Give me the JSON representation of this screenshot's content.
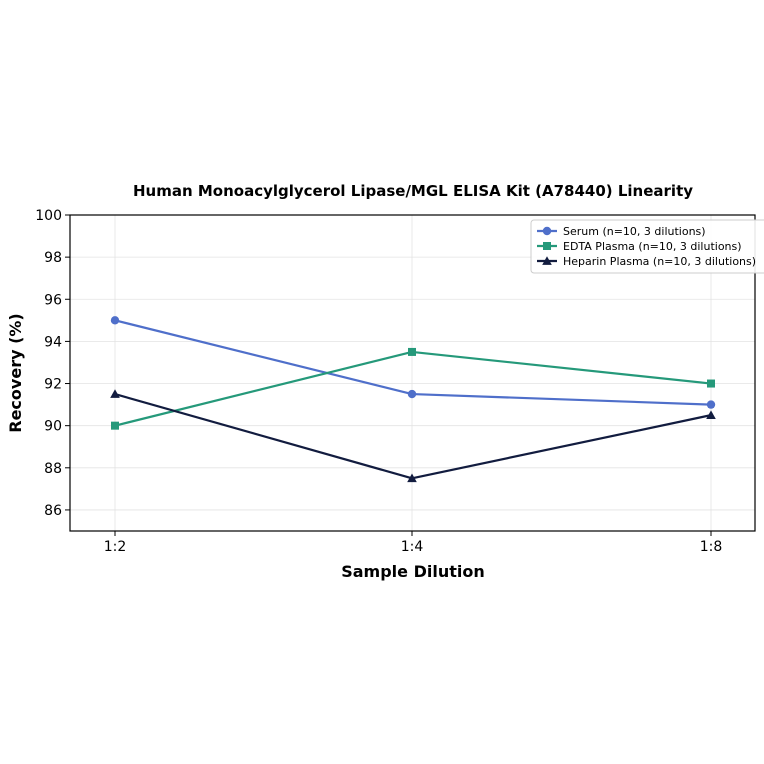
{
  "chart_data": {
    "type": "line",
    "title": "Human Monoacylglycerol Lipase/MGL ELISA Kit (A78440) Linearity",
    "xlabel": "Sample Dilution",
    "ylabel": "Recovery (%)",
    "categories": [
      "1:2",
      "1:4",
      "1:8"
    ],
    "ylim": [
      85,
      100
    ],
    "yticks": [
      86,
      88,
      90,
      92,
      94,
      96,
      98,
      100
    ],
    "grid": true,
    "legend_position": "top-right",
    "series": [
      {
        "name": "Serum (n=10, 3 dilutions)",
        "values": [
          95.0,
          91.5,
          91.0
        ],
        "color": "#4f6fca",
        "marker": "circle"
      },
      {
        "name": "EDTA Plasma (n=10, 3 dilutions)",
        "values": [
          90.0,
          93.5,
          92.0
        ],
        "color": "#25997a",
        "marker": "square"
      },
      {
        "name": "Heparin Plasma (n=10, 3 dilutions)",
        "values": [
          91.5,
          87.5,
          90.5
        ],
        "color": "#121c3f",
        "marker": "triangle"
      }
    ]
  }
}
